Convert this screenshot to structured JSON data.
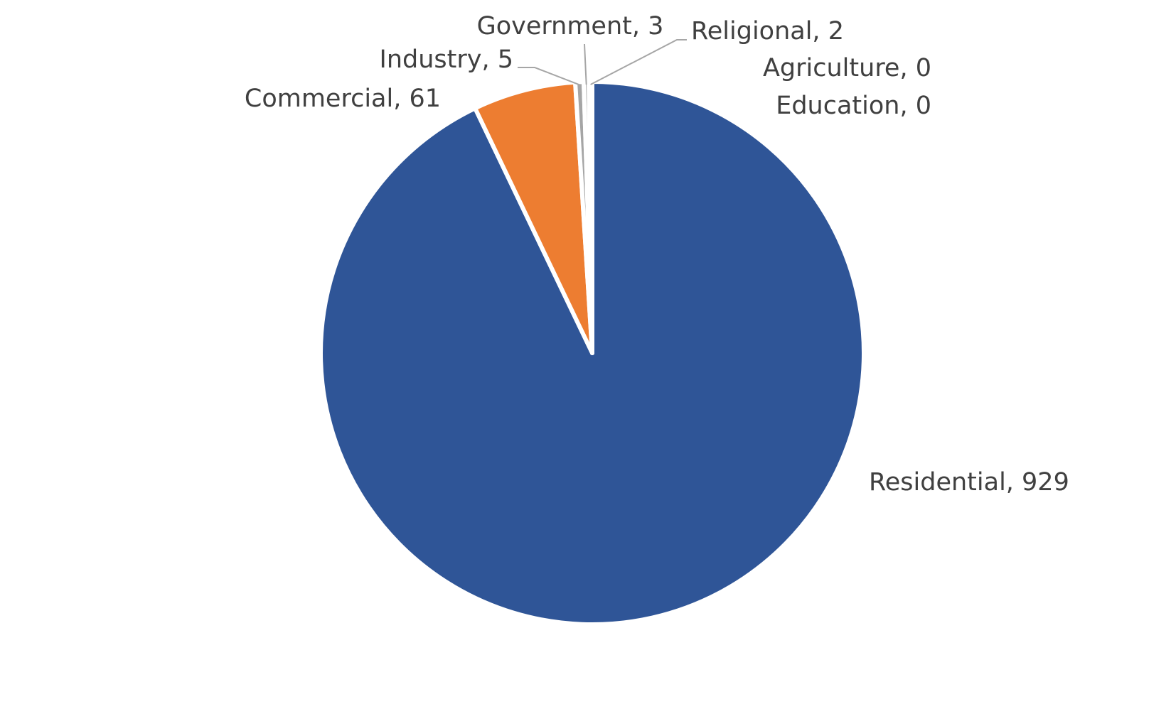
{
  "chart_data": {
    "type": "pie",
    "title": "",
    "slices": [
      {
        "label": "Residential",
        "value": 929,
        "color": "#2f5597",
        "display": "Residential, 929"
      },
      {
        "label": "Commercial",
        "value": 61,
        "color": "#ed7d31",
        "display": "Commercial, 61"
      },
      {
        "label": "Industry",
        "value": 5,
        "color": "#a5a5a5",
        "display": "Industry, 5"
      },
      {
        "label": "Government",
        "value": 3,
        "color": "#a5a5a5",
        "display": "Government, 3"
      },
      {
        "label": "Religional",
        "value": 2,
        "color": "#a5a5a5",
        "display": "Religional, 2"
      },
      {
        "label": "Agriculture",
        "value": 0,
        "color": "#a5a5a5",
        "display": "Agriculture, 0"
      },
      {
        "label": "Education",
        "value": 0,
        "color": "#a5a5a5",
        "display": "Education, 0"
      }
    ],
    "legend": "none",
    "data_labels": "category, value"
  }
}
